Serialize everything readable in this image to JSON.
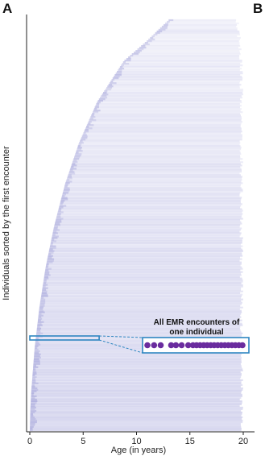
{
  "panel_labels": [
    "A",
    "B"
  ],
  "chart_data": {
    "type": "scatter",
    "title": "",
    "xlabel": "Age (in years)",
    "ylabel": "Individuals sorted by the first encounter",
    "xlim": [
      0,
      20
    ],
    "xticks": [
      0,
      5,
      10,
      15,
      20
    ],
    "grid": false,
    "legend": "none",
    "colors": {
      "encounters": "#3b3bb0",
      "highlight_box": "#2e86c1",
      "highlight_dot": "#6a2c9e",
      "axis": "#222222"
    },
    "envelope": {
      "description_free": true,
      "rows_from_bottom_fraction": [
        0.0,
        0.05,
        0.1,
        0.2,
        0.3,
        0.4,
        0.5,
        0.6,
        0.7,
        0.8,
        0.9,
        0.95,
        1.0
      ],
      "max_age": [
        20,
        20,
        20,
        20,
        20,
        20,
        20,
        20,
        20,
        20,
        20,
        20,
        20
      ],
      "min_age": [
        0,
        0.05,
        0.15,
        0.45,
        0.9,
        1.5,
        2.3,
        3.3,
        4.6,
        6.3,
        8.8,
        11.0,
        13.0
      ]
    },
    "highlighted_individual": {
      "row_fraction_from_bottom": 0.225,
      "age_range": [
        0,
        6.5
      ],
      "annotation": "All EMR encounters of one individual",
      "annotation_lines": [
        "All EMR encounters of",
        "one individual"
      ],
      "encounter_count": 22
    }
  }
}
